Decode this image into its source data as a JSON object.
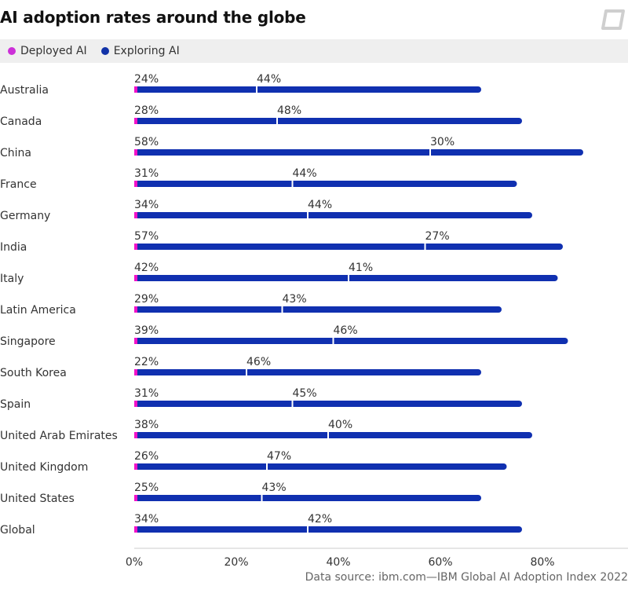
{
  "title": "AI adoption rates around the globe",
  "source": "Data source: ibm.com—IBM Global AI Adoption Index 2022",
  "legend": {
    "deployed_label": "Deployed AI",
    "deployed_color": "#cc2fd8",
    "exploring_label": "Exploring AI",
    "exploring_color": "#1233a8"
  },
  "chart_data": {
    "type": "bar",
    "orientation": "horizontal",
    "stacked": true,
    "categories": [
      "Australia",
      "Canada",
      "China",
      "France",
      "Germany",
      "India",
      "Italy",
      "Latin America",
      "Singapore",
      "South Korea",
      "Spain",
      "United Arab Emirates",
      "United Kingdom",
      "United States",
      "Global"
    ],
    "series": [
      {
        "name": "Deployed AI",
        "values": [
          24,
          28,
          58,
          31,
          34,
          57,
          42,
          29,
          39,
          22,
          31,
          38,
          26,
          25,
          34
        ],
        "labels": [
          "24%",
          "28%",
          "58%",
          "31%",
          "34%",
          "57%",
          "42%",
          "29%",
          "39%",
          "22%",
          "31%",
          "38%",
          "26%",
          "25%",
          "34%"
        ]
      },
      {
        "name": "Exploring AI",
        "values": [
          44,
          48,
          30,
          44,
          44,
          27,
          41,
          43,
          46,
          46,
          45,
          40,
          47,
          43,
          42
        ],
        "labels": [
          "44%",
          "48%",
          "30%",
          "44%",
          "44%",
          "27%",
          "41%",
          "43%",
          "46%",
          "46%",
          "45%",
          "40%",
          "47%",
          "43%",
          "42%"
        ]
      }
    ],
    "xlim": [
      0,
      97
    ],
    "xticks": [
      0,
      20,
      40,
      60,
      80
    ],
    "xtick_labels": [
      "0%",
      "20%",
      "40%",
      "60%",
      "80%"
    ],
    "colors": {
      "deployed_start": "#f012c8",
      "deployed_end": "#3d55e8",
      "exploring": "#1030b0"
    },
    "legend_position": "top-left",
    "grid": false
  }
}
